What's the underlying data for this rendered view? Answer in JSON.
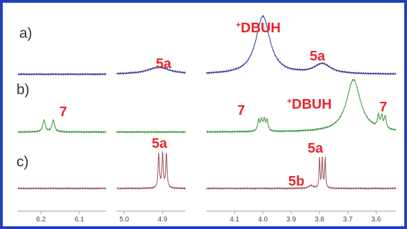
{
  "chart_data": {
    "type": "line",
    "xlabel": "",
    "ylabel": "",
    "x_axis_direction": "reversed",
    "x_axis_broken": true,
    "x_ticks": [
      "6.2",
      "6.1",
      "5.0",
      "4.9",
      "4.1",
      "4.0",
      "3.9",
      "3.8",
      "3.7",
      "3.6"
    ],
    "grid": false,
    "series": [
      {
        "label": "a)",
        "color": "#3a3a9c",
        "peaks": [
          {
            "label": "5a",
            "position_ppm": 4.91,
            "relative_height": 0.12
          },
          {
            "label": "⁺DBUH",
            "position_ppm": 4.0,
            "relative_height": 1.0
          },
          {
            "label": "5a",
            "position_ppm": 3.79,
            "relative_height": 0.17
          }
        ]
      },
      {
        "label": "b)",
        "color": "#3e9a3e",
        "peaks": [
          {
            "label": "7",
            "position_ppm": 6.18,
            "relative_height": 0.25
          },
          {
            "label": "7",
            "position_ppm": 4.0,
            "relative_height": 0.23
          },
          {
            "label": "⁺DBUH",
            "position_ppm": 3.68,
            "relative_height": 1.0
          },
          {
            "label": "7",
            "position_ppm": 3.58,
            "relative_height": 0.25
          }
        ]
      },
      {
        "label": "c)",
        "color": "#a05a60",
        "peaks": [
          {
            "label": "5a",
            "position_ppm": 4.9,
            "relative_height": 1.0
          },
          {
            "label": "5b",
            "position_ppm": 3.83,
            "relative_height": 0.08
          },
          {
            "label": "5a",
            "position_ppm": 3.79,
            "relative_height": 0.9
          }
        ]
      }
    ]
  }
}
